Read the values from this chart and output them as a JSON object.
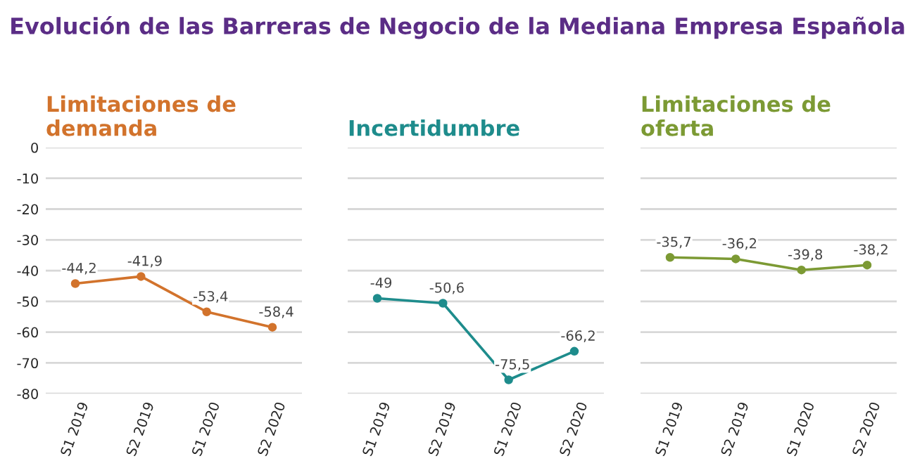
{
  "chart_data": [
    {
      "type": "line",
      "title": "Limitaciones de\ndemanda",
      "annotations": [
        "Evolución de las Barreras de Negocio de la Mediana Empresa Española"
      ],
      "categories": [
        "S1 2019",
        "S2 2019",
        "S1 2020",
        "S2 2020"
      ],
      "series": [
        {
          "color": "#d2732c",
          "values": [
            -44.2,
            -41.9,
            -53.4,
            -58.4
          ],
          "value_labels": [
            "-44,2",
            "-41,9",
            "-53,4",
            "-58,4"
          ]
        }
      ],
      "ylim": [
        -80,
        0
      ],
      "yticks": [
        0,
        -10,
        -20,
        -30,
        -40,
        -50,
        -60,
        -70,
        -80
      ],
      "grid": "y",
      "marker": "circle",
      "line_style": "solid"
    },
    {
      "type": "line",
      "title": "Incertidumbre",
      "categories": [
        "S1 2019",
        "S2 2019",
        "S1 2020",
        "S2 2020"
      ],
      "series": [
        {
          "color": "#1e8c8c",
          "values": [
            -49,
            -50.6,
            -75.5,
            -66.2
          ],
          "value_labels": [
            "-49",
            "-50,6",
            "-75,5",
            "-66,2"
          ]
        }
      ],
      "ylim": [
        -80,
        0
      ],
      "yticks": [
        0,
        -10,
        -20,
        -30,
        -40,
        -50,
        -60,
        -70,
        -80
      ],
      "tick_labels": "x",
      "grid": "y",
      "marker": "circle",
      "line_style": "solid"
    },
    {
      "type": "line",
      "title": "Limitaciones de\noferta",
      "categories": [
        "S1 2019",
        "S2 2019",
        "S1 2020",
        "S2 2020"
      ],
      "series": [
        {
          "color": "#7c9a34",
          "values": [
            -35.7,
            -36.2,
            -39.8,
            -38.2
          ],
          "value_labels": [
            "-35,7",
            "-36,2",
            "-39,8",
            "-38,2"
          ]
        }
      ],
      "ylim": [
        -80,
        0
      ],
      "yticks": [
        0,
        -10,
        -20,
        -30,
        -40,
        -50,
        -60,
        -70,
        -80
      ],
      "tick_labels": "x",
      "grid": "y",
      "marker": "circle",
      "line_style": "solid"
    }
  ]
}
